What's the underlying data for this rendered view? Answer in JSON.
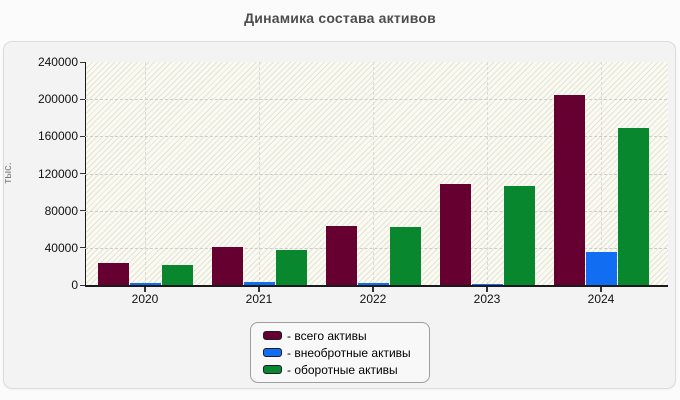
{
  "title": "Динамика состава активов",
  "chart_data": {
    "type": "bar",
    "title": "Динамика состава активов",
    "xlabel": "",
    "ylabel": "тыс.",
    "ylim": [
      0,
      240000
    ],
    "ytick_step": 40000,
    "grid": true,
    "legend_position": "bottom-center",
    "categories": [
      "2020",
      "2021",
      "2022",
      "2023",
      "2024"
    ],
    "series": [
      {
        "key": "total",
        "name": "- всего активы",
        "color": "#650031",
        "values": [
          24000,
          41000,
          64000,
          109000,
          204000
        ]
      },
      {
        "key": "noncurrent",
        "name": "- внеобротные активы",
        "color": "#116df2",
        "values": [
          2000,
          3000,
          2000,
          1500,
          35000
        ]
      },
      {
        "key": "current",
        "name": "- оборотные активы",
        "color": "#08872f",
        "values": [
          22000,
          38000,
          62000,
          107000,
          169000
        ]
      }
    ]
  },
  "colors": {
    "title_text": "#4d4d4d",
    "panel_bg": "#f3f3f3",
    "plot_bg": "#fbfaee",
    "axis": "#1a1a1a",
    "gridline": "#cccccc"
  }
}
